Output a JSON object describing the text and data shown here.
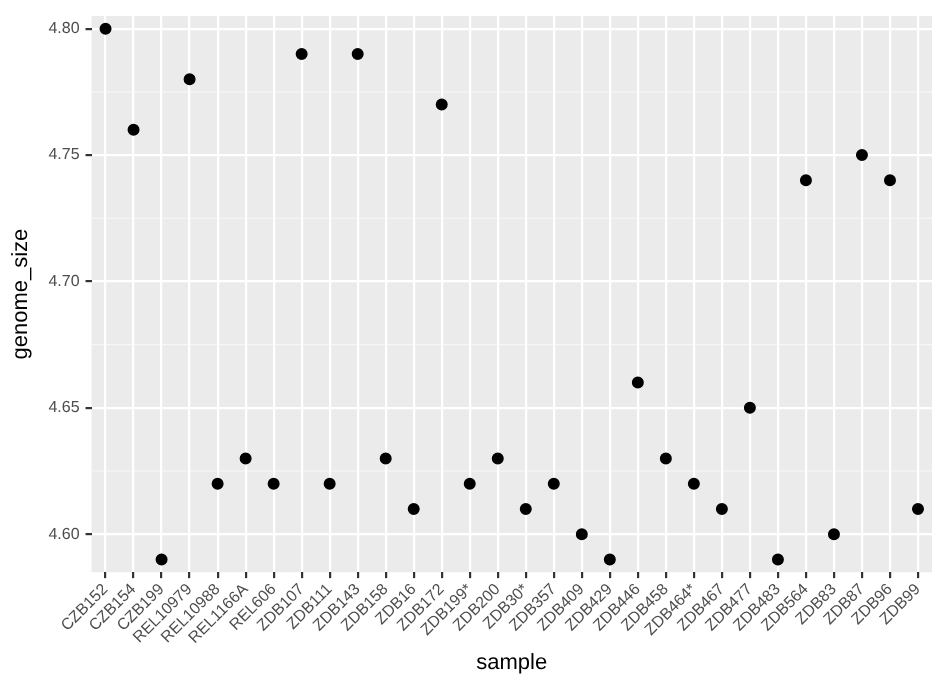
{
  "chart_data": {
    "type": "scatter",
    "xlabel": "sample",
    "ylabel": "genome_size",
    "categories": [
      "CZB152",
      "CZB154",
      "CZB199",
      "REL10979",
      "REL10988",
      "REL1166A",
      "REL606",
      "ZDB107",
      "ZDB111",
      "ZDB143",
      "ZDB158",
      "ZDB16",
      "ZDB172",
      "ZDB199*",
      "ZDB200",
      "ZDB30*",
      "ZDB357",
      "ZDB409",
      "ZDB429",
      "ZDB446",
      "ZDB458",
      "ZDB464*",
      "ZDB467",
      "ZDB477",
      "ZDB483",
      "ZDB564",
      "ZDB83",
      "ZDB87",
      "ZDB96",
      "ZDB99"
    ],
    "series": [
      {
        "color": "#000000",
        "values": [
          4.8,
          4.76,
          4.59,
          4.78,
          4.62,
          4.63,
          4.62,
          4.79,
          4.62,
          4.79,
          4.63,
          4.61,
          4.77,
          4.62,
          4.63,
          4.61,
          4.62,
          4.6,
          4.59,
          4.66,
          4.63,
          4.62,
          4.61,
          4.65,
          4.59,
          4.74,
          4.6,
          4.75,
          4.74,
          4.61
        ]
      }
    ],
    "ylim": [
      4.585,
      4.805
    ],
    "yticks": [
      {
        "value": 4.6,
        "label": "4.60"
      },
      {
        "value": 4.65,
        "label": "4.65"
      },
      {
        "value": 4.7,
        "label": "4.70"
      },
      {
        "value": 4.75,
        "label": "4.75"
      },
      {
        "value": 4.8,
        "label": "4.80"
      }
    ],
    "grid": true,
    "marker": "circle"
  }
}
